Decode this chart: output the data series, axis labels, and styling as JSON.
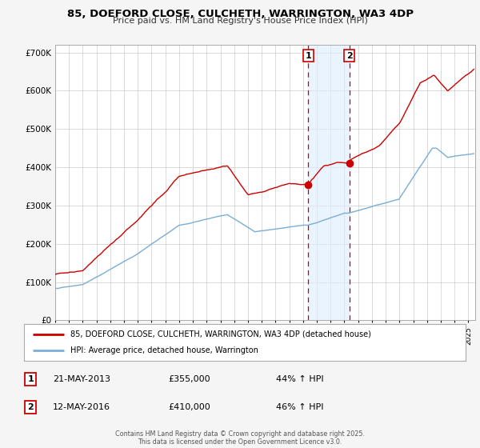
{
  "title": "85, DOEFORD CLOSE, CULCHETH, WARRINGTON, WA3 4DP",
  "subtitle": "Price paid vs. HM Land Registry's House Price Index (HPI)",
  "ylabel_ticks": [
    "£0",
    "£100K",
    "£200K",
    "£300K",
    "£400K",
    "£500K",
    "£600K",
    "£700K"
  ],
  "ytick_vals": [
    0,
    100000,
    200000,
    300000,
    400000,
    500000,
    600000,
    700000
  ],
  "ylim": [
    0,
    720000
  ],
  "xlim_start": 1995.0,
  "xlim_end": 2025.5,
  "event1_date": 2013.38,
  "event2_date": 2016.36,
  "event1_price": 355000,
  "event2_price": 410000,
  "event1_label": "21-MAY-2013",
  "event2_label": "12-MAY-2016",
  "event1_pct": "44% ↑ HPI",
  "event2_pct": "46% ↑ HPI",
  "legend_line1": "85, DOEFORD CLOSE, CULCHETH, WARRINGTON, WA3 4DP (detached house)",
  "legend_line2": "HPI: Average price, detached house, Warrington",
  "footer": "Contains HM Land Registry data © Crown copyright and database right 2025.\nThis data is licensed under the Open Government Licence v3.0.",
  "red_color": "#cc0000",
  "blue_color": "#7aadd4",
  "bg_color": "#f5f5f5",
  "plot_bg": "#ffffff",
  "grid_color": "#cccccc",
  "shade_color": "#ddeeff"
}
